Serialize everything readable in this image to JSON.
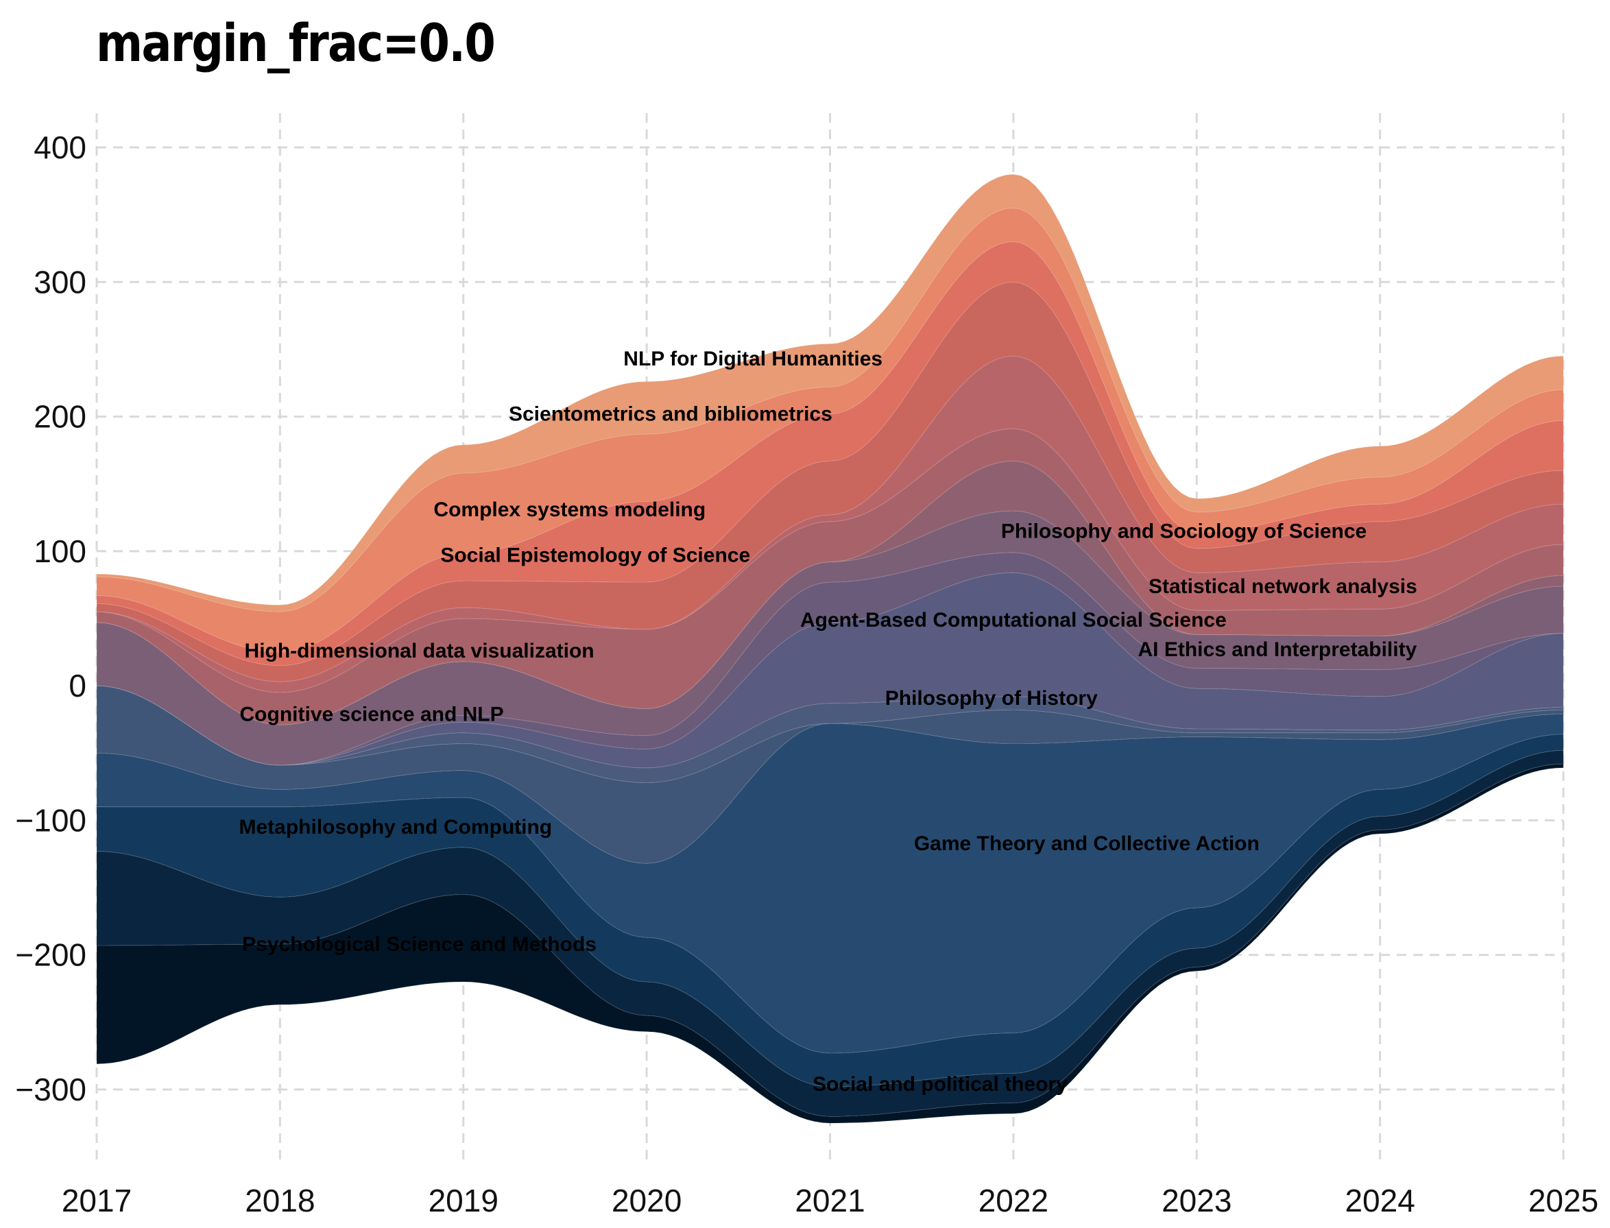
{
  "chart_data": {
    "type": "area",
    "title": "margin_frac=0.0",
    "xlabel": "",
    "ylabel": "",
    "x": [
      2017,
      2018,
      2019,
      2020,
      2021,
      2022,
      2023,
      2024,
      2025
    ],
    "xlim": [
      2017,
      2025
    ],
    "ylim": [
      -360,
      425
    ],
    "yticks": [
      -300,
      -200,
      -100,
      0,
      100,
      200,
      300,
      400
    ],
    "grid": true,
    "legend": "none",
    "baseline": [
      -281,
      -237,
      -220,
      -257,
      -325,
      -318,
      -212,
      -110,
      -61
    ],
    "series": [
      {
        "label": "Psychological Science and Methods",
        "values": [
          88,
          45,
          65,
          12,
          5,
          8,
          3,
          3,
          3
        ],
        "color": "#021526"
      },
      {
        "label": "Social and political theory",
        "values": [
          70,
          35,
          35,
          25,
          22,
          22,
          14,
          10,
          10
        ],
        "color": "#0a2540"
      },
      {
        "label": "Metaphilosophy and Computing",
        "values": [
          33,
          67,
          37,
          33,
          25,
          30,
          30,
          20,
          12
        ],
        "color": "#133a5c"
      },
      {
        "label": "Game Theory and Collective Action",
        "values": [
          40,
          13,
          20,
          55,
          245,
          215,
          127,
          37,
          15
        ],
        "color": "#274a70"
      },
      {
        "label": "Cognitive science and NLP",
        "values": [
          50,
          18,
          20,
          60,
          0,
          25,
          3,
          5,
          3
        ],
        "color": "#3f5678"
      },
      {
        "label": "Philosophy of History",
        "values": [
          0,
          0,
          8,
          11,
          15,
          10,
          3,
          2,
          2
        ],
        "color": "#4b5b7e"
      },
      {
        "label": "Agent-Based Computational Social Science",
        "values": [
          0,
          0,
          8,
          14,
          60,
          92,
          30,
          25,
          55
        ],
        "color": "#595c80"
      },
      {
        "label": "AI Ethics and Interpretability",
        "values": [
          0,
          0,
          5,
          10,
          30,
          15,
          15,
          20,
          0
        ],
        "color": "#6a5b7b"
      },
      {
        "label": "High-dimensional data visualization",
        "values": [
          47,
          30,
          40,
          20,
          15,
          31,
          25,
          25,
          35
        ],
        "color": "#7b5f76"
      },
      {
        "label": "Statistical network analysis",
        "values": [
          0,
          0,
          0,
          0,
          0,
          37,
          0,
          0,
          8
        ],
        "color": "#8f6170"
      },
      {
        "label": "Social Epistemology of Science",
        "values": [
          8,
          24,
          32,
          59,
          30,
          24,
          18,
          20,
          23
        ],
        "color": "#a8636a"
      },
      {
        "label": "Philosophy and Sociology of Science",
        "values": [
          0,
          8,
          8,
          0,
          5,
          54,
          28,
          35,
          30
        ],
        "color": "#b8656a"
      },
      {
        "label": "Complex systems modeling",
        "values": [
          6,
          12,
          20,
          35,
          40,
          55,
          18,
          30,
          25
        ],
        "color": "#c9675f"
      },
      {
        "label": "Scientometrics and bibliometrics",
        "values": [
          6,
          10,
          20,
          60,
          35,
          30,
          12,
          13,
          37
        ],
        "color": "#de7061"
      },
      {
        "label": "NLP for Digital Humanities",
        "values": [
          14,
          30,
          60,
          50,
          20,
          25,
          15,
          20,
          23
        ],
        "color": "#e8866a"
      },
      {
        "label": "",
        "values": [
          2,
          5,
          21,
          39,
          32,
          25,
          10,
          23,
          25
        ],
        "color": "#e89b75"
      }
    ],
    "annotations": [
      {
        "text": "NLP for Digital Humanities",
        "x": 2020.58,
        "y": 243
      },
      {
        "text": "Scientometrics and bibliometrics",
        "x": 2020.13,
        "y": 202
      },
      {
        "text": "Complex systems modeling",
        "x": 2019.58,
        "y": 131
      },
      {
        "text": "Social Epistemology of Science",
        "x": 2019.72,
        "y": 97
      },
      {
        "text": "Philosophy and Sociology of Science",
        "x": 2022.93,
        "y": 115
      },
      {
        "text": "Statistical network analysis",
        "x": 2023.47,
        "y": 74
      },
      {
        "text": "Agent-Based Computational Social Science",
        "x": 2022.0,
        "y": 49
      },
      {
        "text": "AI Ethics and Interpretability",
        "x": 2023.44,
        "y": 27
      },
      {
        "text": "High-dimensional data visualization",
        "x": 2018.76,
        "y": 26
      },
      {
        "text": "Philosophy of History",
        "x": 2021.88,
        "y": -9
      },
      {
        "text": "Cognitive science and NLP",
        "x": 2018.5,
        "y": -21
      },
      {
        "text": "Metaphilosophy and Computing",
        "x": 2018.63,
        "y": -105
      },
      {
        "text": "Game Theory and Collective Action",
        "x": 2022.4,
        "y": -117
      },
      {
        "text": "Psychological Science and Methods",
        "x": 2018.76,
        "y": -192
      },
      {
        "text": "Social and political theory",
        "x": 2021.6,
        "y": -296
      }
    ]
  }
}
